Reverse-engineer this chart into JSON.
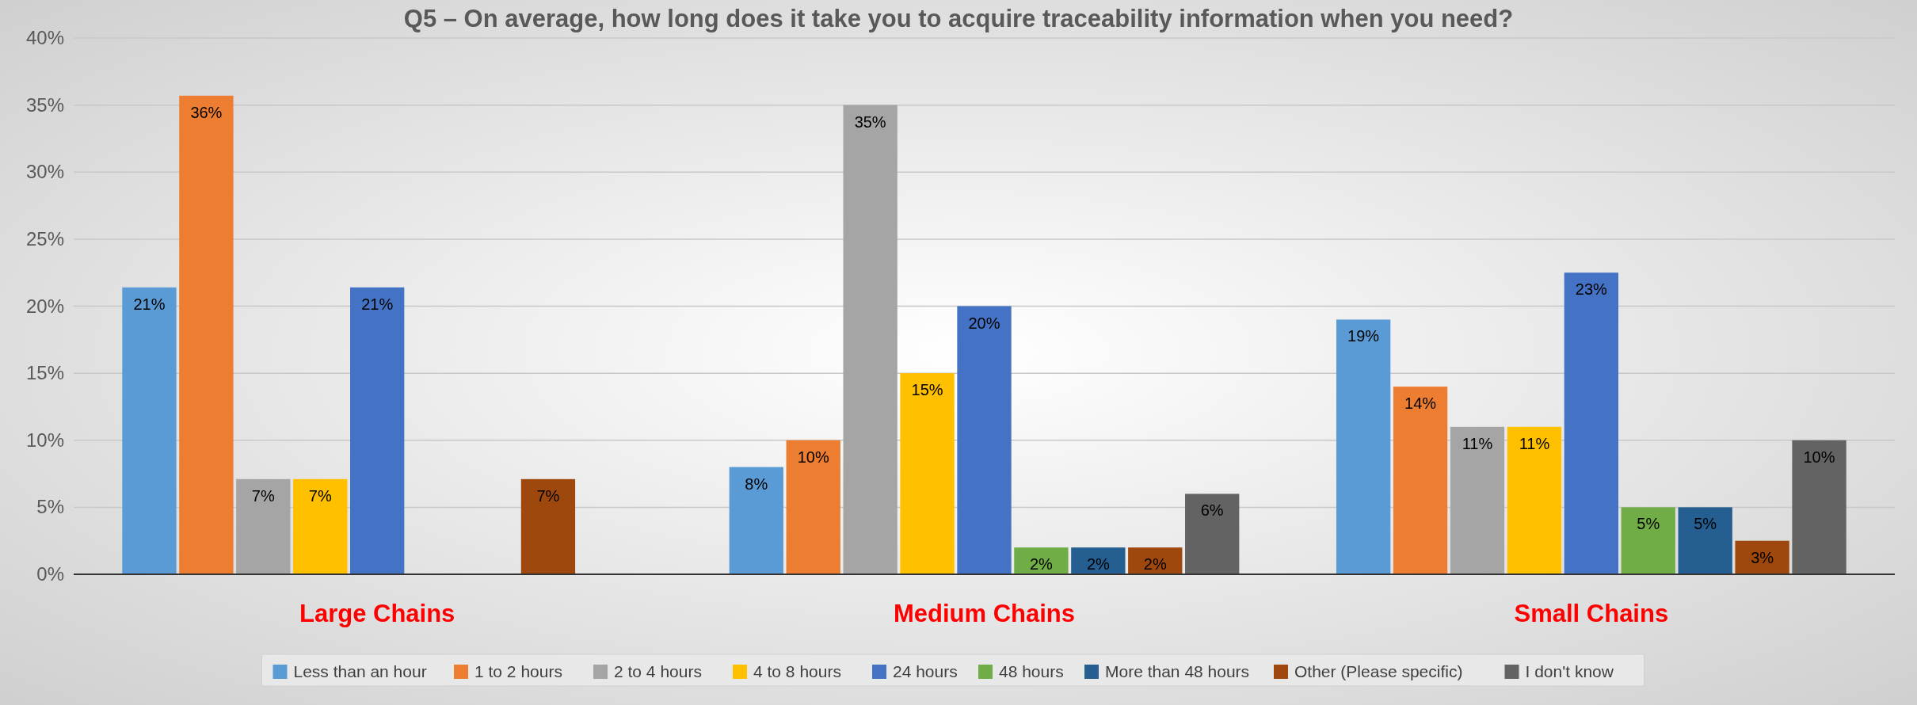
{
  "chart_data": {
    "type": "bar",
    "title": "Q5 – On average, how long does it take you to acquire traceability information when you need?",
    "categories": [
      "Large Chains",
      "Medium Chains",
      "Small Chains"
    ],
    "series": [
      {
        "name": "Less than an hour",
        "color": "#5b9bd5",
        "values": [
          21.4,
          8,
          19
        ],
        "value_labels": [
          "21%",
          "8%",
          "19%"
        ]
      },
      {
        "name": "1 to 2 hours",
        "color": "#ed7d31",
        "values": [
          35.7,
          10,
          14
        ],
        "value_labels": [
          "36%",
          "10%",
          "14%"
        ]
      },
      {
        "name": "2 to 4 hours",
        "color": "#a5a5a5",
        "values": [
          7.1,
          35,
          11
        ],
        "value_labels": [
          "7%",
          "35%",
          "11%"
        ]
      },
      {
        "name": "4 to 8 hours",
        "color": "#ffc000",
        "values": [
          7.1,
          15,
          11
        ],
        "value_labels": [
          "7%",
          "15%",
          "11%"
        ]
      },
      {
        "name": "24 hours",
        "color": "#4472c4",
        "values": [
          21.4,
          20,
          22.5
        ],
        "value_labels": [
          "21%",
          "20%",
          "23%"
        ]
      },
      {
        "name": "48 hours",
        "color": "#70ad47",
        "values": [
          0,
          2,
          5
        ],
        "value_labels": [
          null,
          "2%",
          "5%"
        ]
      },
      {
        "name": "More than 48 hours",
        "color": "#255e91",
        "values": [
          0,
          2,
          5
        ],
        "value_labels": [
          null,
          "2%",
          "5%"
        ]
      },
      {
        "name": "Other (Please specific)",
        "color": "#9e480e",
        "values": [
          7.1,
          2,
          2.5
        ],
        "value_labels": [
          "7%",
          "2%",
          "3%"
        ]
      },
      {
        "name": "I don't know",
        "color": "#636363",
        "values": [
          0,
          6,
          10
        ],
        "value_labels": [
          null,
          "6%",
          "10%"
        ]
      }
    ],
    "ylim": [
      0,
      40
    ],
    "yticks": [
      {
        "value": 0,
        "label": "0%"
      },
      {
        "value": 5,
        "label": "5%"
      },
      {
        "value": 10,
        "label": "10%"
      },
      {
        "value": 15,
        "label": "15%"
      },
      {
        "value": 20,
        "label": "20%"
      },
      {
        "value": 25,
        "label": "25%"
      },
      {
        "value": 30,
        "label": "30%"
      },
      {
        "value": 35,
        "label": "35%"
      },
      {
        "value": 40,
        "label": "40%"
      }
    ],
    "grid": "y",
    "legend": "bottom"
  }
}
